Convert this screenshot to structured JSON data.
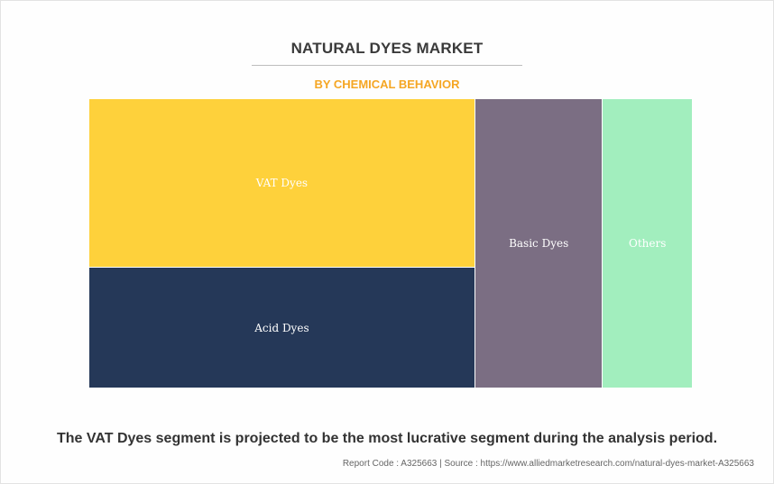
{
  "header": {
    "title": "NATURAL DYES MARKET",
    "subtitle": "BY CHEMICAL BEHAVIOR"
  },
  "chart_data": {
    "type": "treemap",
    "title": "NATURAL DYES MARKET",
    "subtitle": "BY CHEMICAL BEHAVIOR",
    "segments": [
      {
        "name": "VAT Dyes",
        "share": 37.2,
        "color": "#fed13b"
      },
      {
        "name": "Acid Dyes",
        "share": 26.7,
        "color": "#253858"
      },
      {
        "name": "Basic Dyes",
        "share": 21.2,
        "color": "#7b6e83"
      },
      {
        "name": "Others",
        "share": 14.9,
        "color": "#a2eebe"
      }
    ]
  },
  "footer": {
    "headline": "The VAT Dyes segment is projected to be the most lucrative segment during the analysis period.",
    "source": "Report Code : A325663  |  Source : https://www.alliedmarketresearch.com/natural-dyes-market-A325663"
  }
}
